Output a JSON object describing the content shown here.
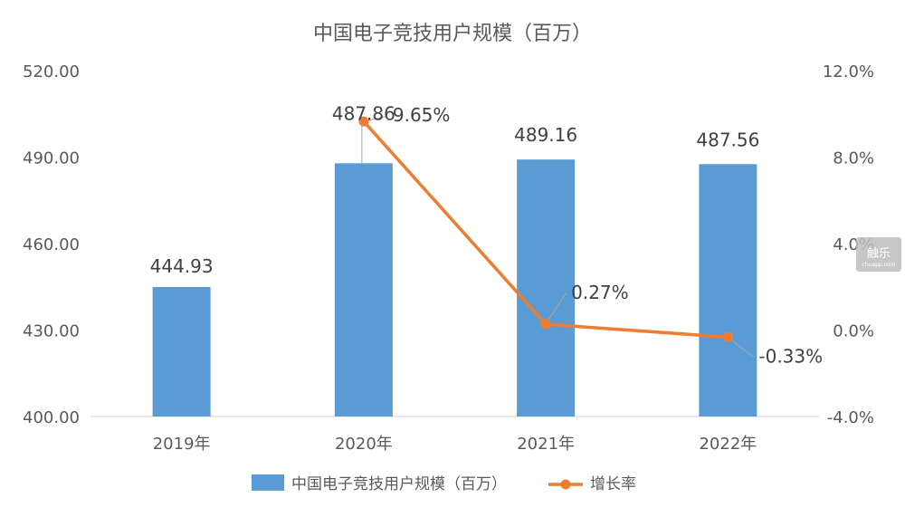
{
  "chart_data": {
    "type": "bar",
    "title": "中国电子竞技用户规模（百万）",
    "categories": [
      "2019年",
      "2020年",
      "2021年",
      "2022年"
    ],
    "series": [
      {
        "name": "中国电子竞技用户规模（百万）",
        "type": "bar",
        "axis": "left",
        "values": [
          444.93,
          487.86,
          489.16,
          487.56
        ],
        "labels": [
          "444.93",
          "487.86",
          "489.16",
          "487.56"
        ],
        "color": "#5B9BD5"
      },
      {
        "name": "增长率",
        "type": "line",
        "axis": "right",
        "values": [
          null,
          9.65,
          0.27,
          -0.33
        ],
        "labels": [
          "",
          "9.65%",
          "0.27%",
          "-0.33%"
        ],
        "color": "#ED7D31"
      }
    ],
    "y_left": {
      "ylim": [
        400,
        520
      ],
      "ticks": [
        400,
        430,
        460,
        490,
        520
      ],
      "tick_labels": [
        "400.00",
        "430.00",
        "460.00",
        "490.00",
        "520.00"
      ]
    },
    "y_right": {
      "ylim": [
        -4,
        12
      ],
      "ticks": [
        -4,
        0,
        4,
        8,
        12
      ],
      "tick_labels": [
        "-4.0%",
        "0.0%",
        "4.0%",
        "8.0%",
        "12.0%"
      ]
    },
    "grid": false,
    "legend_position": "bottom"
  },
  "watermark": {
    "text": "触乐",
    "sub": "chuapp.com"
  }
}
